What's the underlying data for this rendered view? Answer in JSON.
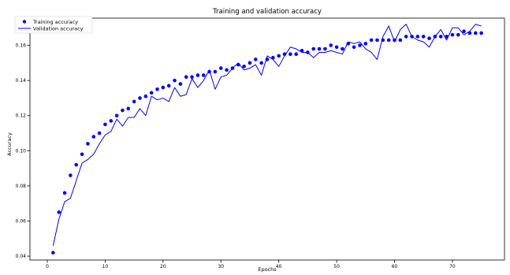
{
  "chart_data": {
    "type": "line",
    "title": "Training and validation accuracy",
    "xlabel": "Epochs",
    "ylabel": "Accuracy",
    "xlim": [
      -3.0,
      79.0
    ],
    "ylim": [
      0.0378,
      0.1755
    ],
    "xticks": [
      0,
      10,
      20,
      30,
      40,
      50,
      60,
      70
    ],
    "yticks": [
      0.04,
      0.06,
      0.08,
      0.1,
      0.12,
      0.14,
      0.16
    ],
    "ytick_labels": [
      "0.04",
      "0.06",
      "0.08",
      "0.10",
      "0.12",
      "0.14",
      "0.16"
    ],
    "grid": false,
    "legend_position": "upper left",
    "color": "#0000ff",
    "series": [
      {
        "name": "Training accuracy",
        "style": "points",
        "x": [
          1,
          2,
          3,
          4,
          5,
          6,
          7,
          8,
          9,
          10,
          11,
          12,
          13,
          14,
          15,
          16,
          17,
          18,
          19,
          20,
          21,
          22,
          23,
          24,
          25,
          26,
          27,
          28,
          29,
          30,
          31,
          32,
          33,
          34,
          35,
          36,
          37,
          38,
          39,
          40,
          41,
          42,
          43,
          44,
          45,
          46,
          47,
          48,
          49,
          50,
          51,
          52,
          53,
          54,
          55,
          56,
          57,
          58,
          59,
          60,
          61,
          62,
          63,
          64,
          65,
          66,
          67,
          68,
          69,
          70,
          71,
          72,
          73,
          74,
          75
        ],
        "values": [
          0.042,
          0.065,
          0.076,
          0.086,
          0.092,
          0.098,
          0.104,
          0.108,
          0.11,
          0.115,
          0.117,
          0.12,
          0.123,
          0.124,
          0.128,
          0.13,
          0.131,
          0.133,
          0.135,
          0.136,
          0.137,
          0.14,
          0.138,
          0.142,
          0.142,
          0.143,
          0.143,
          0.145,
          0.145,
          0.147,
          0.146,
          0.147,
          0.149,
          0.148,
          0.15,
          0.152,
          0.15,
          0.152,
          0.153,
          0.154,
          0.155,
          0.155,
          0.155,
          0.157,
          0.156,
          0.158,
          0.158,
          0.158,
          0.16,
          0.159,
          0.158,
          0.161,
          0.159,
          0.16,
          0.161,
          0.163,
          0.163,
          0.163,
          0.163,
          0.163,
          0.163,
          0.165,
          0.165,
          0.165,
          0.165,
          0.164,
          0.165,
          0.165,
          0.165,
          0.166,
          0.166,
          0.168,
          0.167,
          0.167,
          0.167
        ]
      },
      {
        "name": "Validation accuracy",
        "style": "line",
        "x": [
          1,
          2,
          3,
          4,
          5,
          6,
          7,
          8,
          9,
          10,
          11,
          12,
          13,
          14,
          15,
          16,
          17,
          18,
          19,
          20,
          21,
          22,
          23,
          24,
          25,
          26,
          27,
          28,
          29,
          30,
          31,
          32,
          33,
          34,
          35,
          36,
          37,
          38,
          39,
          40,
          41,
          42,
          43,
          44,
          45,
          46,
          47,
          48,
          49,
          50,
          51,
          52,
          53,
          54,
          55,
          56,
          57,
          58,
          59,
          60,
          61,
          62,
          63,
          64,
          65,
          66,
          67,
          68,
          69,
          70,
          71,
          72,
          73,
          74,
          75
        ],
        "values": [
          0.046,
          0.061,
          0.071,
          0.073,
          0.083,
          0.093,
          0.095,
          0.098,
          0.104,
          0.109,
          0.111,
          0.118,
          0.114,
          0.119,
          0.119,
          0.124,
          0.12,
          0.131,
          0.129,
          0.13,
          0.128,
          0.136,
          0.131,
          0.132,
          0.141,
          0.136,
          0.14,
          0.146,
          0.135,
          0.142,
          0.143,
          0.147,
          0.15,
          0.146,
          0.147,
          0.149,
          0.143,
          0.154,
          0.152,
          0.148,
          0.154,
          0.159,
          0.158,
          0.156,
          0.156,
          0.153,
          0.156,
          0.156,
          0.157,
          0.156,
          0.155,
          0.162,
          0.161,
          0.162,
          0.158,
          0.156,
          0.152,
          0.165,
          0.171,
          0.162,
          0.169,
          0.172,
          0.165,
          0.163,
          0.162,
          0.159,
          0.165,
          0.169,
          0.163,
          0.17,
          0.17,
          0.166,
          0.168,
          0.172,
          0.171
        ]
      }
    ]
  }
}
